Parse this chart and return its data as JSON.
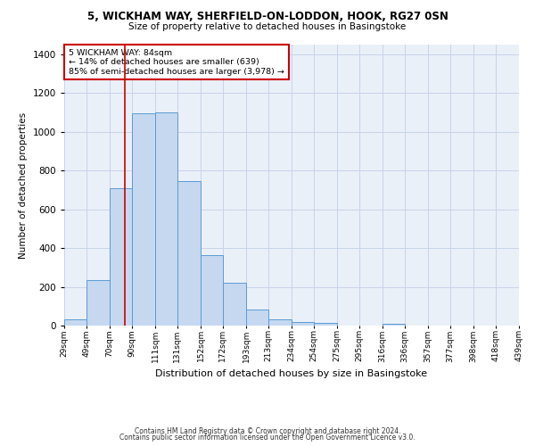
{
  "title_line1": "5, WICKHAM WAY, SHERFIELD-ON-LODDON, HOOK, RG27 0SN",
  "title_line2": "Size of property relative to detached houses in Basingstoke",
  "xlabel": "Distribution of detached houses by size in Basingstoke",
  "ylabel": "Number of detached properties",
  "footnote1": "Contains HM Land Registry data © Crown copyright and database right 2024.",
  "footnote2": "Contains public sector information licensed under the Open Government Licence v3.0.",
  "annotation_title": "5 WICKHAM WAY: 84sqm",
  "annotation_line2": "← 14% of detached houses are smaller (639)",
  "annotation_line3": "85% of semi-detached houses are larger (3,978) →",
  "bar_color": "#c5d8f0",
  "bar_edge_color": "#5b9bd5",
  "redline_x": 84,
  "bin_edges": [
    29,
    49,
    70,
    90,
    111,
    131,
    152,
    172,
    193,
    213,
    234,
    254,
    275,
    295,
    316,
    336,
    357,
    377,
    398,
    418,
    439
  ],
  "bar_heights": [
    30,
    235,
    710,
    1095,
    1100,
    745,
    365,
    220,
    85,
    30,
    20,
    15,
    0,
    0,
    10,
    0,
    0,
    0,
    0,
    0
  ],
  "ylim": [
    0,
    1450
  ],
  "yticks": [
    0,
    200,
    400,
    600,
    800,
    1000,
    1200,
    1400
  ],
  "background_color": "#ffffff",
  "plot_bg_color": "#eaf0f8",
  "grid_color": "#c8d4e8",
  "annotation_box_color": "#ffffff",
  "annotation_box_edgecolor": "#cc0000",
  "redline_color": "#cc0000",
  "title1_fontsize": 8.5,
  "title2_fontsize": 7.5,
  "ylabel_fontsize": 7.5,
  "xlabel_fontsize": 8.0,
  "ytick_fontsize": 7.5,
  "xtick_fontsize": 6.5,
  "annot_fontsize": 6.8,
  "footnote_fontsize": 5.5
}
